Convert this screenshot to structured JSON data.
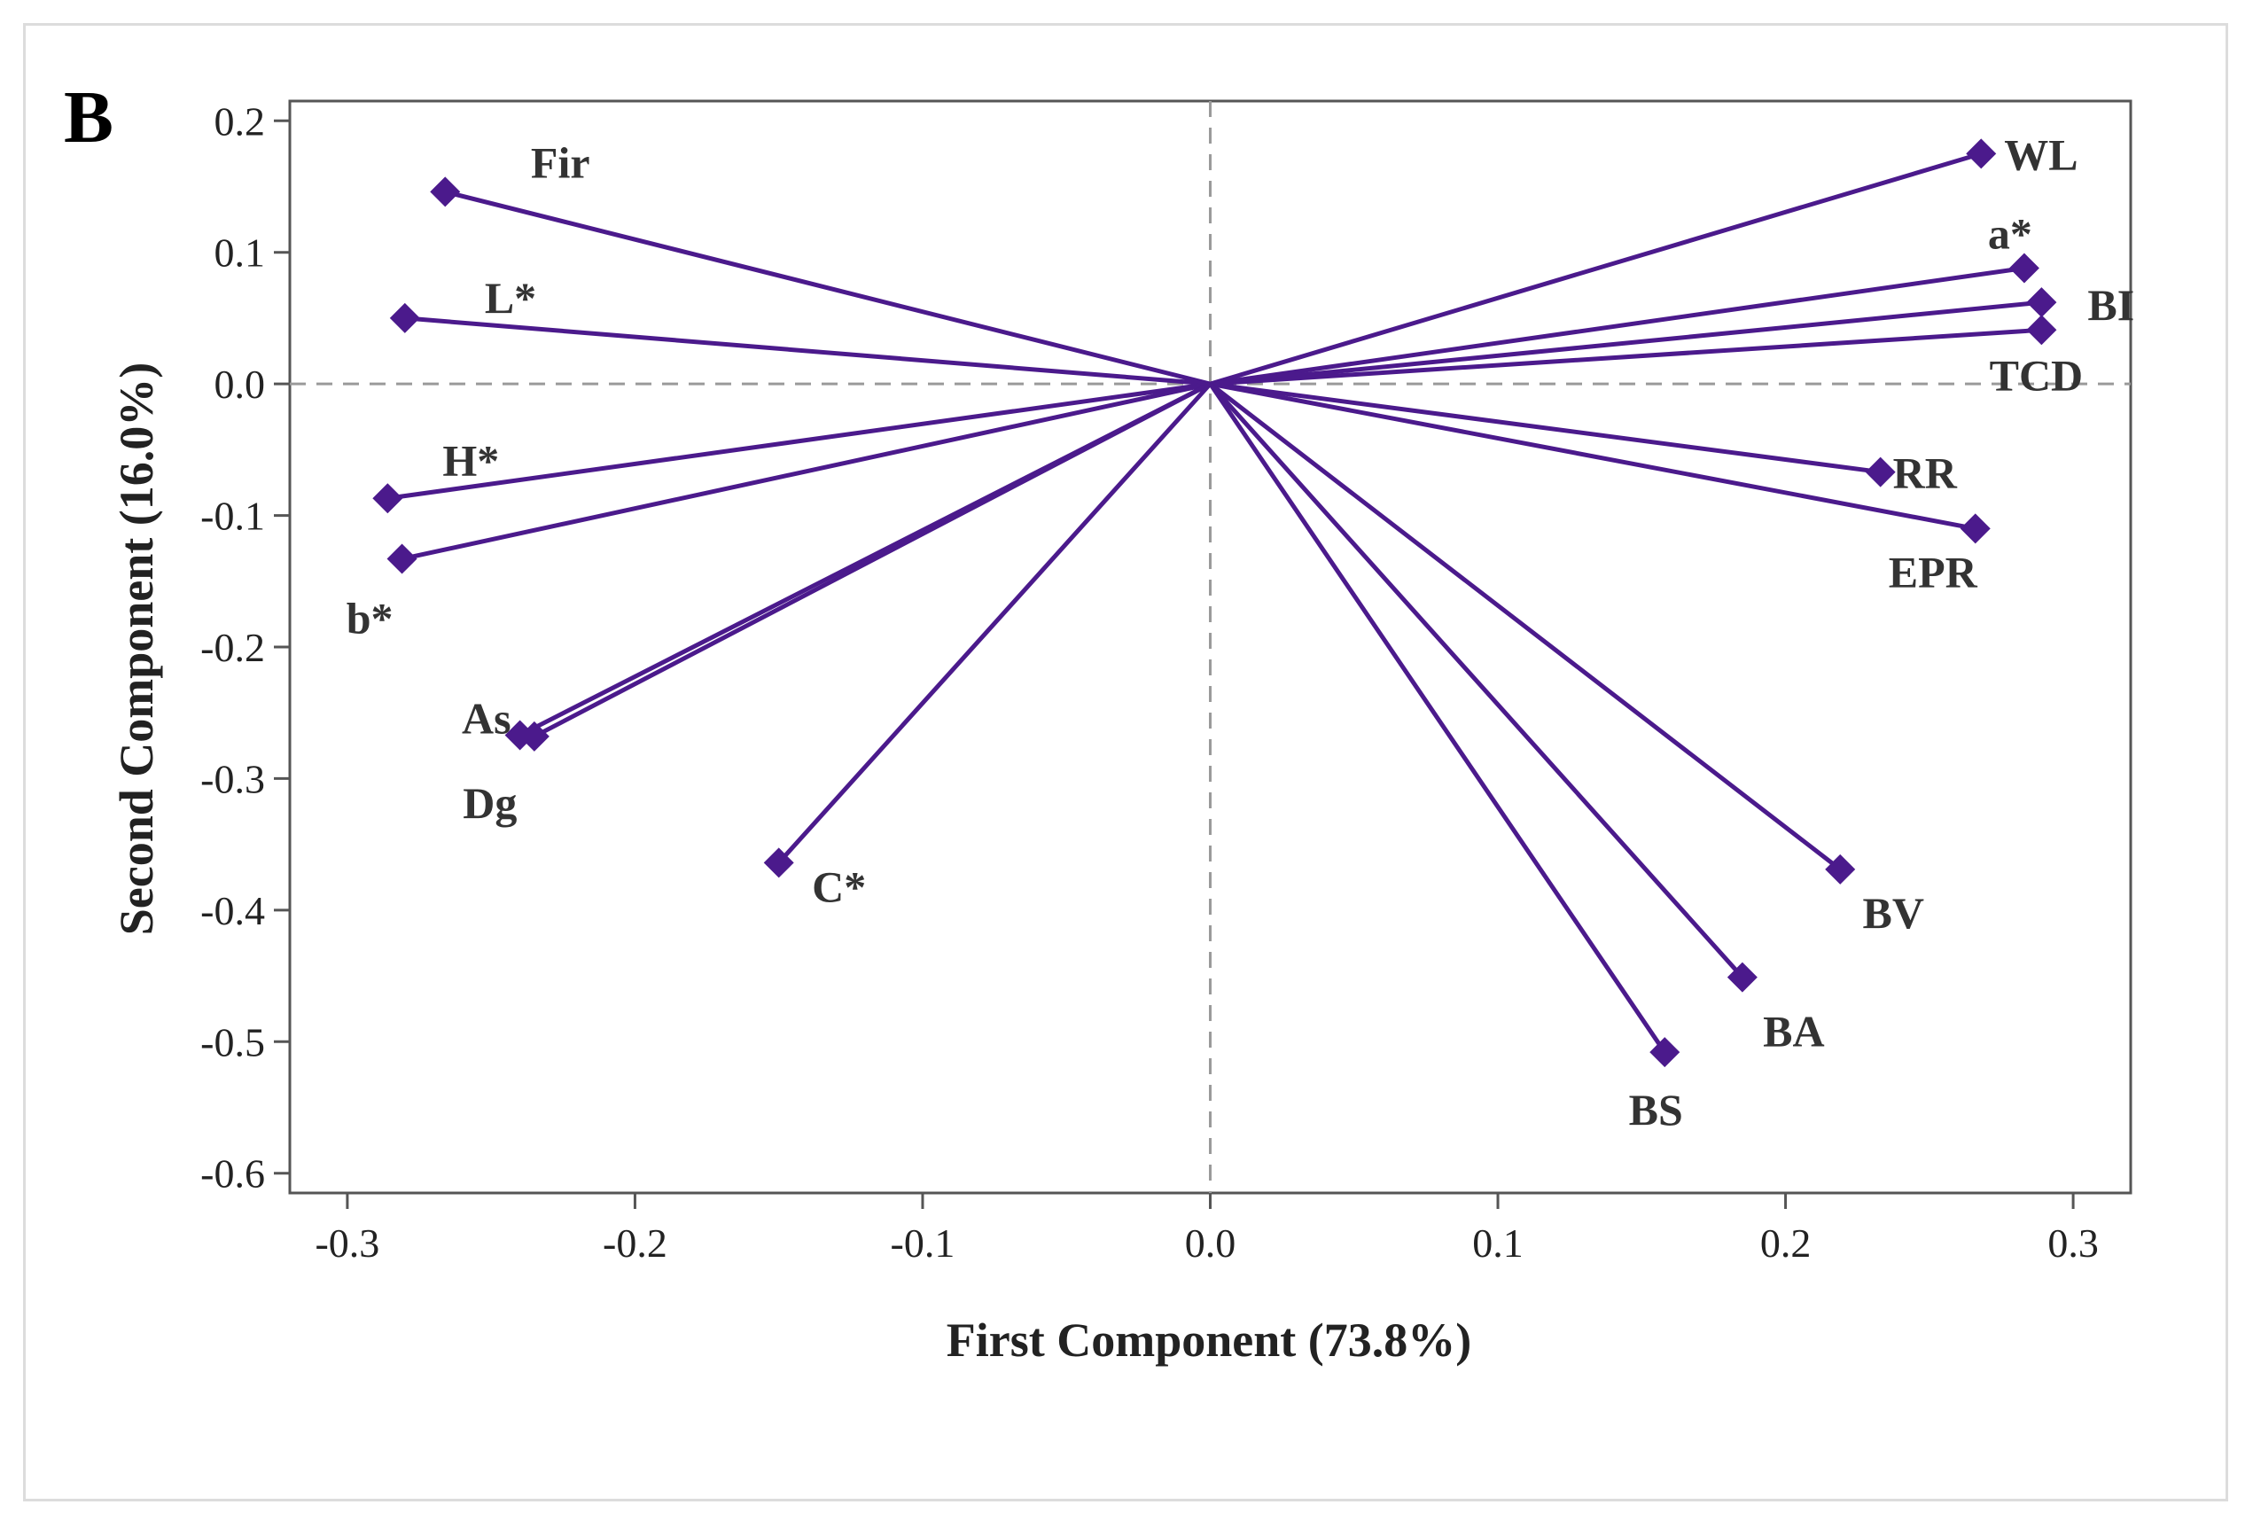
{
  "panel_label": "B",
  "colors": {
    "vector": "#4B1A8C",
    "reference_line": "#9a9a9a",
    "axis": "#555555"
  },
  "chart_data": {
    "type": "scatter",
    "subtype": "loading-plot",
    "xlabel": "First Component (73.8%)",
    "ylabel": "Second Component (16.0%)",
    "xlim": [
      -0.32,
      0.32
    ],
    "ylim": [
      -0.615,
      0.215
    ],
    "xticks": [
      -0.3,
      -0.2,
      -0.1,
      0.0,
      0.1,
      0.2,
      0.3
    ],
    "yticks": [
      0.2,
      0.1,
      0.0,
      -0.1,
      -0.2,
      -0.3,
      -0.4,
      -0.5,
      -0.6
    ],
    "xtick_labels": [
      "-0.3",
      "-0.2",
      "-0.1",
      "0.0",
      "0.1",
      "0.2",
      "0.3"
    ],
    "ytick_labels": [
      "0.2",
      "0.1",
      "0.0",
      "-0.1",
      "-0.2",
      "-0.3",
      "-0.4",
      "-0.5",
      "-0.6"
    ],
    "reference_lines": {
      "x": 0,
      "y": 0,
      "style": "dashed"
    },
    "grid": false,
    "legend": "none",
    "points": [
      {
        "label": "Fir",
        "x": -0.266,
        "y": 0.146,
        "label_pos": "upper-right"
      },
      {
        "label": "L*",
        "x": -0.28,
        "y": 0.05,
        "label_pos": "upper-right"
      },
      {
        "label": "H*",
        "x": -0.286,
        "y": -0.087,
        "label_pos": "upper-right"
      },
      {
        "label": "b*",
        "x": -0.281,
        "y": -0.133,
        "label_pos": "lower-left"
      },
      {
        "label": "As",
        "x": -0.24,
        "y": -0.267,
        "label_pos": "left"
      },
      {
        "label": "Dg",
        "x": -0.235,
        "y": -0.268,
        "label_pos": "lower-left"
      },
      {
        "label": "C*",
        "x": -0.15,
        "y": -0.364,
        "label_pos": "lower-right"
      },
      {
        "label": "WL",
        "x": 0.268,
        "y": 0.175,
        "label_pos": "right"
      },
      {
        "label": "a*",
        "x": 0.283,
        "y": 0.088,
        "label_pos": "above"
      },
      {
        "label": "BI",
        "x": 0.289,
        "y": 0.062,
        "label_pos": "right"
      },
      {
        "label": "TCD",
        "x": 0.289,
        "y": 0.041,
        "label_pos": "below"
      },
      {
        "label": "RR",
        "x": 0.233,
        "y": -0.067,
        "label_pos": "right"
      },
      {
        "label": "EPR",
        "x": 0.266,
        "y": -0.11,
        "label_pos": "lower-left"
      },
      {
        "label": "BV",
        "x": 0.219,
        "y": -0.369,
        "label_pos": "below"
      },
      {
        "label": "BA",
        "x": 0.185,
        "y": -0.451,
        "label_pos": "below"
      },
      {
        "label": "BS",
        "x": 0.158,
        "y": -0.508,
        "label_pos": "below"
      }
    ]
  }
}
